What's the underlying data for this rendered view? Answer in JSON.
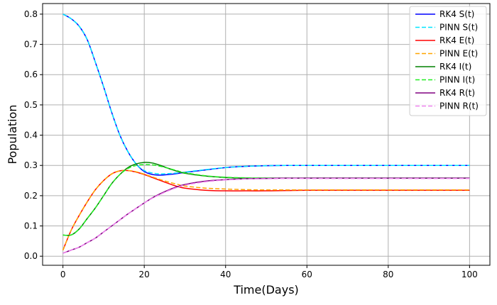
{
  "chart_data": {
    "type": "line",
    "title": "",
    "xlabel": "Time(Days)",
    "ylabel": "Population",
    "xlim": [
      -5,
      105
    ],
    "ylim": [
      -0.03,
      0.835
    ],
    "x_ticks": [
      "0",
      "20",
      "40",
      "60",
      "80",
      "100"
    ],
    "y_ticks": [
      "0.0",
      "0.1",
      "0.2",
      "0.3",
      "0.4",
      "0.5",
      "0.6",
      "0.7",
      "0.8"
    ],
    "grid": true,
    "legend_position": "top-right",
    "x": [
      0,
      2,
      4,
      6,
      8,
      10,
      12,
      14,
      16,
      18,
      20,
      22,
      24,
      26,
      28,
      30,
      35,
      40,
      45,
      50,
      55,
      60,
      70,
      80,
      90,
      100
    ],
    "series": [
      {
        "name": "RK4 S(t)",
        "color": "#0000ff",
        "style": "solid",
        "values": [
          0.8,
          0.785,
          0.76,
          0.715,
          0.64,
          0.56,
          0.475,
          0.4,
          0.345,
          0.305,
          0.28,
          0.27,
          0.268,
          0.27,
          0.273,
          0.277,
          0.285,
          0.293,
          0.297,
          0.299,
          0.3,
          0.3,
          0.3,
          0.3,
          0.3,
          0.3
        ]
      },
      {
        "name": "PINN S(t)",
        "color": "#00e5ff",
        "style": "dashed",
        "values": [
          0.8,
          0.785,
          0.76,
          0.715,
          0.64,
          0.56,
          0.475,
          0.4,
          0.345,
          0.305,
          0.283,
          0.275,
          0.272,
          0.273,
          0.275,
          0.278,
          0.286,
          0.293,
          0.297,
          0.299,
          0.3,
          0.3,
          0.3,
          0.3,
          0.3,
          0.3
        ]
      },
      {
        "name": "RK4 E(t)",
        "color": "#ff0000",
        "style": "solid",
        "values": [
          0.02,
          0.085,
          0.135,
          0.18,
          0.22,
          0.25,
          0.272,
          0.282,
          0.283,
          0.278,
          0.27,
          0.26,
          0.25,
          0.24,
          0.231,
          0.225,
          0.218,
          0.216,
          0.216,
          0.216,
          0.217,
          0.218,
          0.218,
          0.218,
          0.218,
          0.218
        ]
      },
      {
        "name": "PINN E(t)",
        "color": "#ffa500",
        "style": "dashed",
        "values": [
          0.02,
          0.085,
          0.135,
          0.18,
          0.22,
          0.25,
          0.272,
          0.282,
          0.283,
          0.279,
          0.271,
          0.262,
          0.253,
          0.245,
          0.238,
          0.232,
          0.225,
          0.222,
          0.22,
          0.219,
          0.219,
          0.219,
          0.219,
          0.219,
          0.219,
          0.219
        ]
      },
      {
        "name": "RK4 I(t)",
        "color": "#008000",
        "style": "solid",
        "values": [
          0.07,
          0.07,
          0.09,
          0.125,
          0.16,
          0.2,
          0.24,
          0.27,
          0.293,
          0.305,
          0.31,
          0.308,
          0.3,
          0.29,
          0.281,
          0.274,
          0.265,
          0.26,
          0.258,
          0.258,
          0.258,
          0.258,
          0.258,
          0.258,
          0.258,
          0.258
        ]
      },
      {
        "name": "PINN I(t)",
        "color": "#22ee22",
        "style": "dashed",
        "values": [
          0.07,
          0.07,
          0.09,
          0.125,
          0.16,
          0.2,
          0.24,
          0.27,
          0.29,
          0.3,
          0.303,
          0.302,
          0.297,
          0.29,
          0.283,
          0.276,
          0.266,
          0.261,
          0.259,
          0.258,
          0.258,
          0.258,
          0.258,
          0.258,
          0.258,
          0.258
        ]
      },
      {
        "name": "RK4 R(t)",
        "color": "#800080",
        "style": "solid",
        "values": [
          0.01,
          0.02,
          0.03,
          0.045,
          0.06,
          0.08,
          0.1,
          0.12,
          0.14,
          0.158,
          0.176,
          0.193,
          0.207,
          0.219,
          0.229,
          0.237,
          0.248,
          0.253,
          0.256,
          0.257,
          0.258,
          0.258,
          0.258,
          0.258,
          0.258,
          0.258
        ]
      },
      {
        "name": "PINN R(t)",
        "color": "#ee82ee",
        "style": "dashed",
        "values": [
          0.01,
          0.02,
          0.03,
          0.045,
          0.06,
          0.08,
          0.1,
          0.12,
          0.14,
          0.158,
          0.176,
          0.192,
          0.205,
          0.217,
          0.227,
          0.235,
          0.246,
          0.252,
          0.255,
          0.256,
          0.257,
          0.257,
          0.257,
          0.257,
          0.257,
          0.257
        ]
      }
    ]
  }
}
